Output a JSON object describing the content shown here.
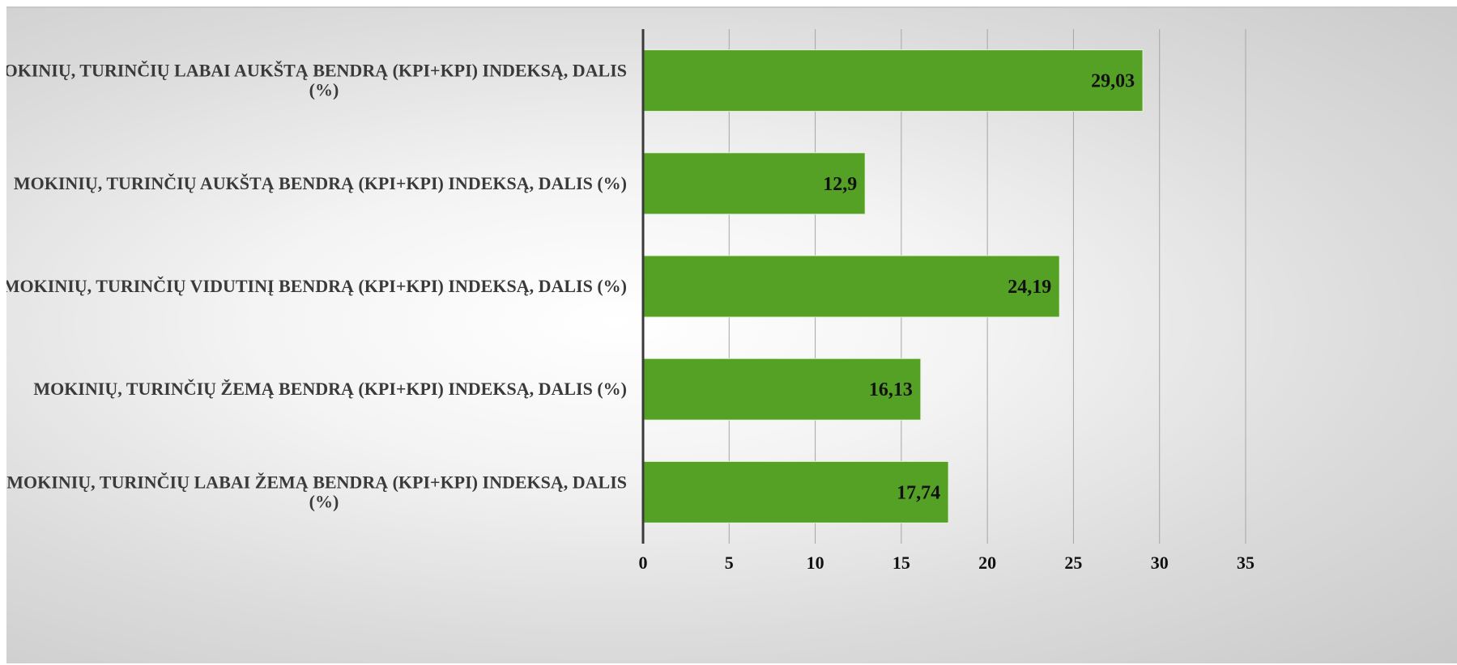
{
  "chart_data": {
    "type": "bar",
    "orientation": "horizontal",
    "categories": [
      "MOKINIŲ, TURINČIŲ LABAI AUKŠTĄ BENDRĄ (KPI+KPI) INDEKSĄ, DALIS (%)",
      "MOKINIŲ, TURINČIŲ AUKŠTĄ BENDRĄ (KPI+KPI) INDEKSĄ, DALIS (%)",
      "MOKINIŲ, TURINČIŲ VIDUTINĮ BENDRĄ (KPI+KPI) INDEKSĄ, DALIS (%)",
      "MOKINIŲ, TURINČIŲ ŽEMĄ BENDRĄ (KPI+KPI) INDEKSĄ, DALIS (%)",
      "MOKINIŲ, TURINČIŲ LABAI ŽEMĄ BENDRĄ (KPI+KPI) INDEKSĄ, DALIS (%)"
    ],
    "category_lines": [
      [
        "MOKINIŲ, TURINČIŲ LABAI AUKŠTĄ BENDRĄ (KPI+KPI) INDEKSĄ, DALIS",
        "(%)"
      ],
      [
        "MOKINIŲ, TURINČIŲ AUKŠTĄ BENDRĄ (KPI+KPI) INDEKSĄ, DALIS (%)"
      ],
      [
        "MOKINIŲ, TURINČIŲ VIDUTINĮ BENDRĄ (KPI+KPI) INDEKSĄ, DALIS (%)"
      ],
      [
        "MOKINIŲ, TURINČIŲ ŽEMĄ BENDRĄ (KPI+KPI) INDEKSĄ, DALIS (%)"
      ],
      [
        "MOKINIŲ, TURINČIŲ LABAI ŽEMĄ BENDRĄ (KPI+KPI) INDEKSĄ, DALIS",
        "(%)"
      ]
    ],
    "values": [
      29.03,
      12.9,
      24.19,
      16.13,
      17.74
    ],
    "data_labels": [
      "29,03",
      "12,9",
      "24,19",
      "16,13",
      "17,74"
    ],
    "xlim": [
      0,
      35
    ],
    "xticks": [
      0,
      5,
      10,
      15,
      20,
      25,
      30,
      35
    ],
    "xtick_labels": [
      "0",
      "5",
      "10",
      "15",
      "20",
      "25",
      "30",
      "35"
    ],
    "title": "",
    "xlabel": "",
    "ylabel": "",
    "grid": "vertical",
    "legend": "none",
    "colors": {
      "bar": "#55a125",
      "bar_edge": "#e8f2dc",
      "grid": "#a6a6a6",
      "axis": "#3a3a3a"
    }
  }
}
